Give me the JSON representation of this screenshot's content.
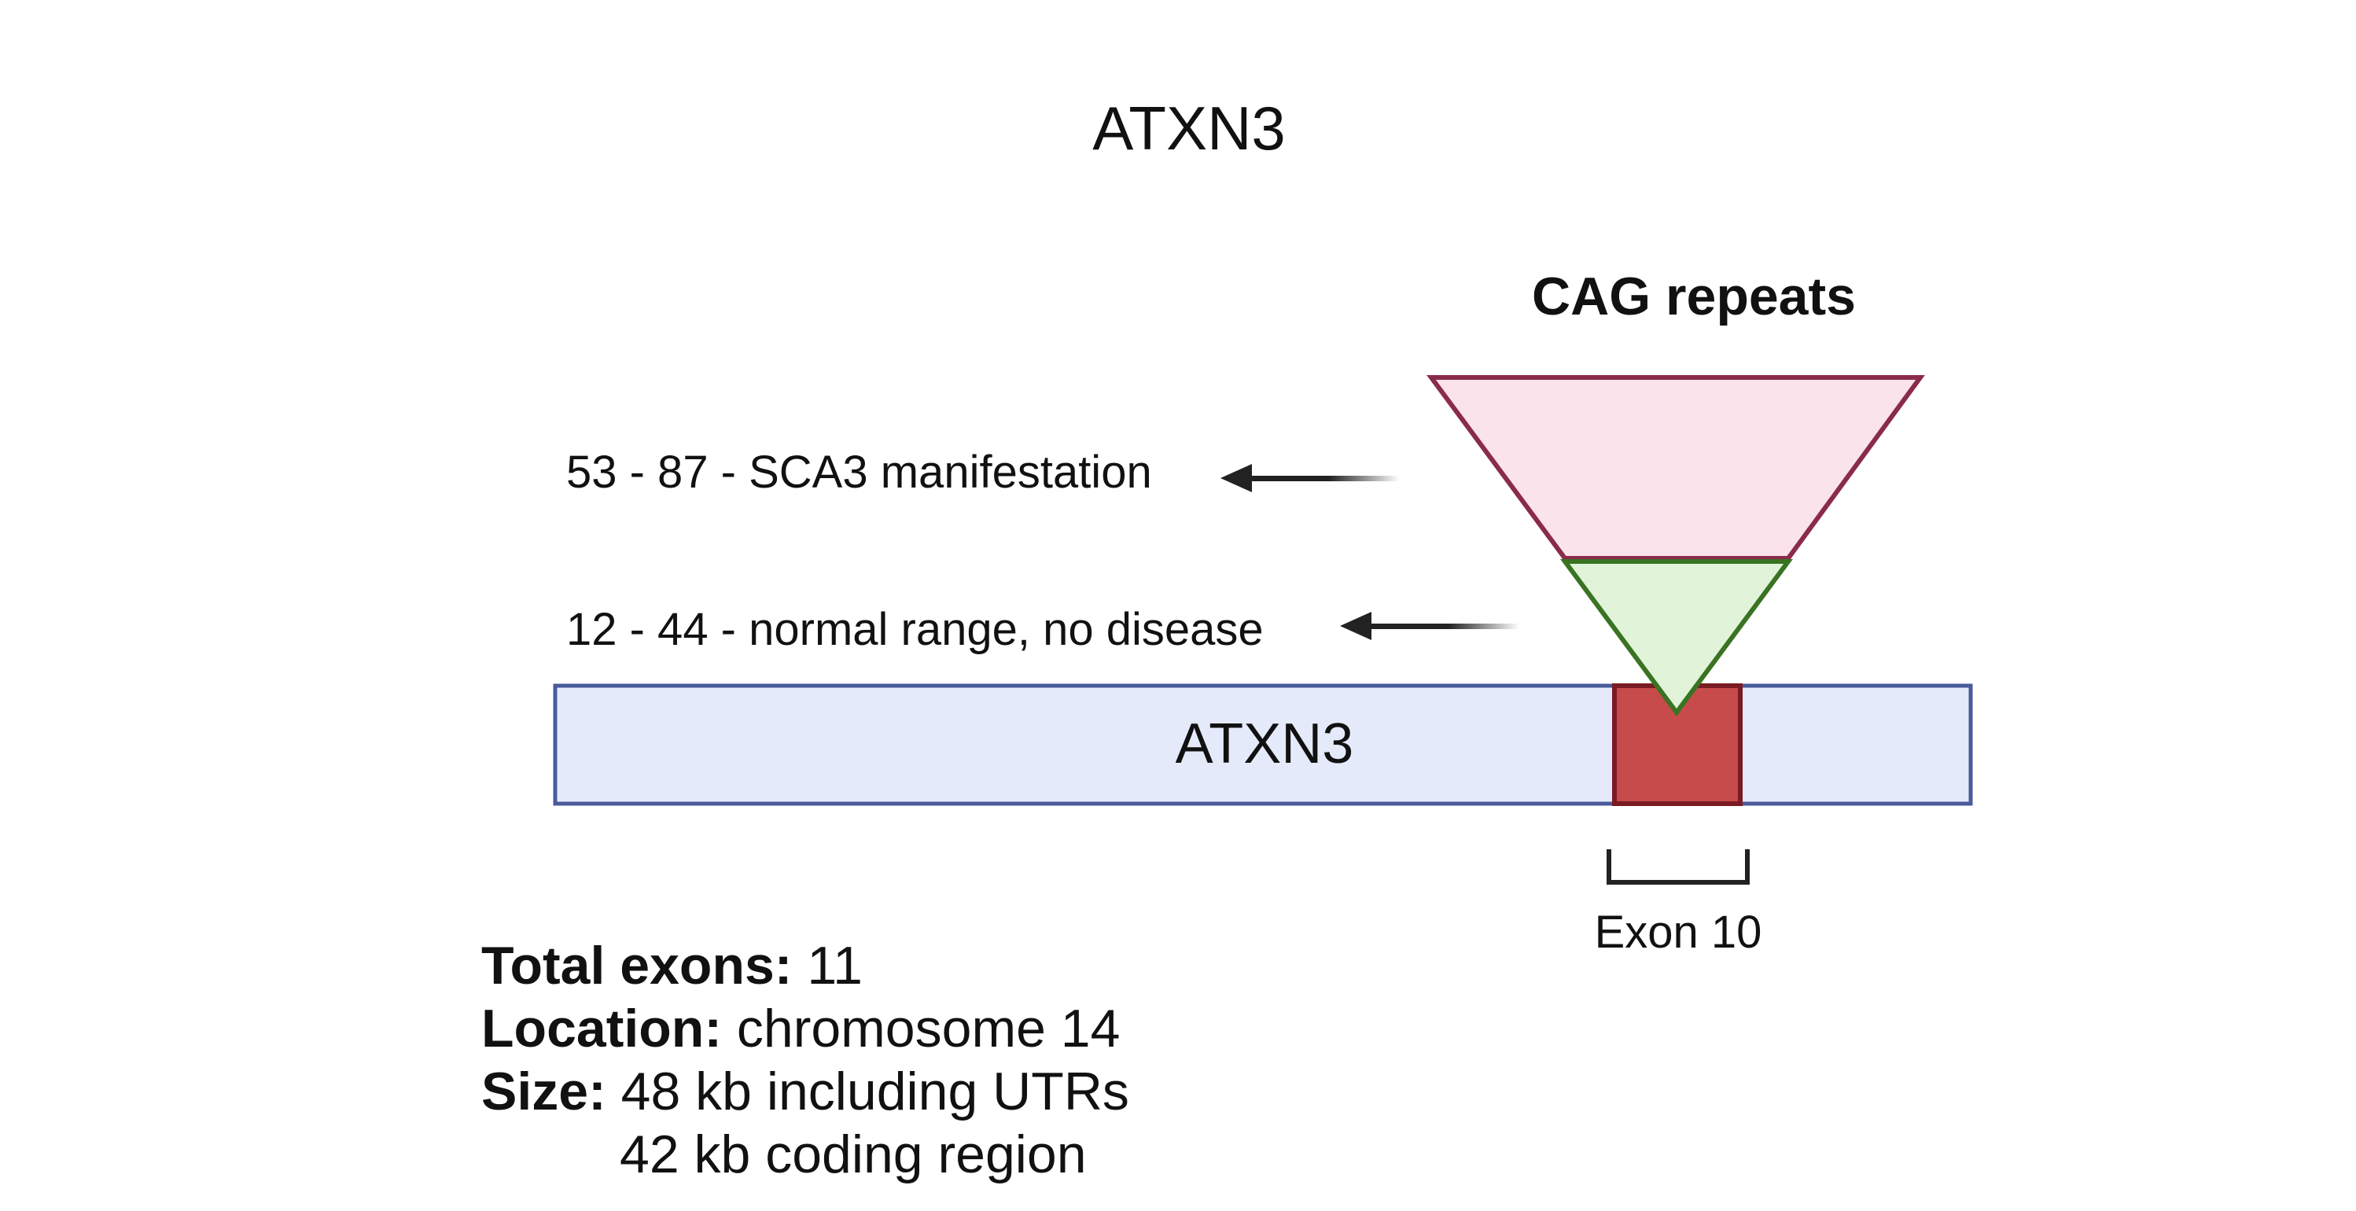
{
  "title": "ATXN3",
  "cag": {
    "heading": "CAG repeats",
    "expanded_label": "53 - 87 - SCA3 manifestation",
    "normal_label": "12 - 44 - normal range, no disease"
  },
  "gene": {
    "label": "ATXN3",
    "exon_label": "Exon 10"
  },
  "info": {
    "exons_label": "Total exons:",
    "exons_value": "11",
    "location_label": "Location:",
    "location_value": "chromosome 14",
    "size_label": "Size:",
    "size_value_1": "48 kb including UTRs",
    "size_value_2": "42 kb coding region"
  },
  "colors": {
    "gene_fill": "#e4eafa",
    "gene_stroke": "#4a5a9a",
    "exon_fill": "#c84b4b",
    "exon_stroke": "#7a1a22",
    "expanded_fill": "#fae3ea",
    "expanded_stroke": "#8a2b4b",
    "normal_fill": "#e1f4d9",
    "normal_stroke": "#3a7322"
  }
}
